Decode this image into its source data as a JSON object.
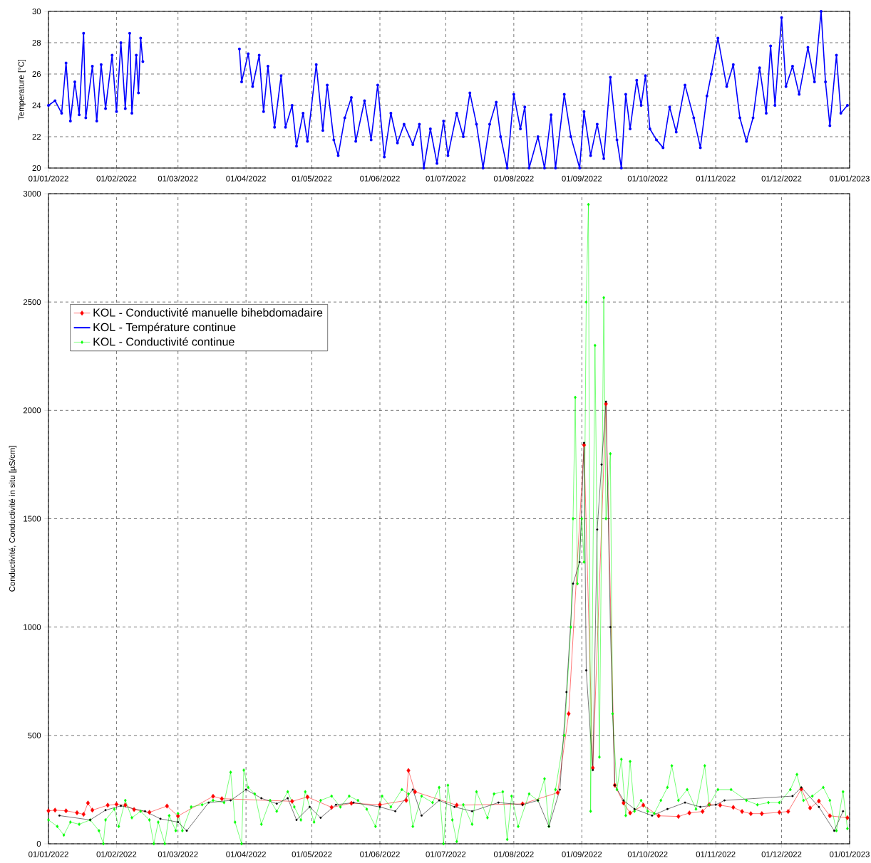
{
  "chart_data": [
    {
      "type": "line",
      "ylabel": "Temperature [°C]",
      "xlim": [
        "2022-01-01",
        "2023-01-01"
      ],
      "ylim": [
        20,
        30
      ],
      "yticks": [
        20,
        22,
        24,
        26,
        28,
        30
      ],
      "grid": true,
      "line_style": "solid",
      "xticks": [
        {
          "value": "2022-01-01",
          "label": "01/01/2022"
        },
        {
          "value": "2022-02-01",
          "label": "01/02/2022"
        },
        {
          "value": "2022-03-01",
          "label": "01/03/2022"
        },
        {
          "value": "2022-04-01",
          "label": "01/04/2022"
        },
        {
          "value": "2022-05-01",
          "label": "01/05/2022"
        },
        {
          "value": "2022-06-01",
          "label": "01/06/2022"
        },
        {
          "value": "2022-07-01",
          "label": "01/07/2022"
        },
        {
          "value": "2022-08-01",
          "label": "01/08/2022"
        },
        {
          "value": "2022-09-01",
          "label": "01/09/2022"
        },
        {
          "value": "2022-10-01",
          "label": "01/10/2022"
        },
        {
          "value": "2022-11-01",
          "label": "01/11/2022"
        },
        {
          "value": "2022-12-01",
          "label": "01/12/2022"
        },
        {
          "value": "2023-01-01",
          "label": "01/01/2023"
        }
      ],
      "series": [
        {
          "name": "KOL - Température continue",
          "color": "#0000ff",
          "marker": "circle",
          "x": [
            "2022-01-01",
            "2022-01-04",
            "2022-01-07",
            "2022-01-09",
            "2022-01-11",
            "2022-01-13",
            "2022-01-15",
            "2022-01-17",
            "2022-01-18",
            "2022-01-21",
            "2022-01-23",
            "2022-01-25",
            "2022-01-27",
            "2022-01-30",
            "2022-02-01",
            "2022-02-03",
            "2022-02-05",
            "2022-02-07",
            "2022-02-08",
            "2022-02-10",
            "2022-02-11",
            "2022-02-12",
            "2022-02-13",
            "2022-03-01",
            "2022-03-29",
            "2022-03-30",
            "2022-04-02",
            "2022-04-04",
            "2022-04-07",
            "2022-04-09",
            "2022-04-11",
            "2022-04-14",
            "2022-04-17",
            "2022-04-19",
            "2022-04-22",
            "2022-04-24",
            "2022-04-27",
            "2022-04-29",
            "2022-05-03",
            "2022-05-06",
            "2022-05-08",
            "2022-05-11",
            "2022-05-13",
            "2022-05-16",
            "2022-05-19",
            "2022-05-21",
            "2022-05-25",
            "2022-05-28",
            "2022-05-31",
            "2022-06-03",
            "2022-06-06",
            "2022-06-09",
            "2022-06-12",
            "2022-06-16",
            "2022-06-19",
            "2022-06-21",
            "2022-06-24",
            "2022-06-27",
            "2022-06-30",
            "2022-07-02",
            "2022-07-06",
            "2022-07-09",
            "2022-07-12",
            "2022-07-15",
            "2022-07-18",
            "2022-07-21",
            "2022-07-24",
            "2022-07-26",
            "2022-07-29",
            "2022-08-01",
            "2022-08-04",
            "2022-08-06",
            "2022-08-08",
            "2022-08-12",
            "2022-08-15",
            "2022-08-18",
            "2022-08-20",
            "2022-08-24",
            "2022-08-27",
            "2022-08-31",
            "2022-09-02",
            "2022-09-05",
            "2022-09-08",
            "2022-09-11",
            "2022-09-14",
            "2022-09-17",
            "2022-09-19",
            "2022-09-21",
            "2022-09-23",
            "2022-09-26",
            "2022-09-28",
            "2022-09-30",
            "2022-10-02",
            "2022-10-05",
            "2022-10-08",
            "2022-10-11",
            "2022-10-14",
            "2022-10-18",
            "2022-10-22",
            "2022-10-25",
            "2022-10-28",
            "2022-10-30",
            "2022-11-02",
            "2022-11-06",
            "2022-11-09",
            "2022-11-12",
            "2022-11-15",
            "2022-11-18",
            "2022-11-21",
            "2022-11-24",
            "2022-11-26",
            "2022-11-28",
            "2022-12-01",
            "2022-12-03",
            "2022-12-06",
            "2022-12-09",
            "2022-12-13",
            "2022-12-16",
            "2022-12-19",
            "2022-12-21",
            "2022-12-23",
            "2022-12-26",
            "2022-12-28",
            "2022-12-31"
          ],
          "values": [
            24.0,
            24.3,
            23.5,
            26.7,
            23.0,
            25.5,
            23.4,
            28.6,
            23.2,
            26.5,
            23.0,
            26.6,
            23.8,
            27.2,
            23.6,
            28.0,
            23.8,
            28.6,
            23.5,
            27.2,
            24.8,
            28.3,
            26.8,
            null,
            27.6,
            25.5,
            27.3,
            25.2,
            27.2,
            23.6,
            26.5,
            22.6,
            25.9,
            22.6,
            24.0,
            21.4,
            23.5,
            21.7,
            26.6,
            22.4,
            25.3,
            21.8,
            20.8,
            23.2,
            24.5,
            21.7,
            24.3,
            21.8,
            25.3,
            20.7,
            23.5,
            21.6,
            22.8,
            21.5,
            22.8,
            20.0,
            22.5,
            20.3,
            23.0,
            20.8,
            23.5,
            22.0,
            24.8,
            22.8,
            20.0,
            22.8,
            24.2,
            22.0,
            20.0,
            24.7,
            22.5,
            23.9,
            20.0,
            22.0,
            20.0,
            23.4,
            20.0,
            24.7,
            22.0,
            20.0,
            23.6,
            20.8,
            22.8,
            20.6,
            25.8,
            21.8,
            20.0,
            24.7,
            22.5,
            25.6,
            24.0,
            25.9,
            22.5,
            21.8,
            21.3,
            23.9,
            22.3,
            25.3,
            23.2,
            21.3,
            24.6,
            26.0,
            28.3,
            25.2,
            26.6,
            23.2,
            21.7,
            23.2,
            26.4,
            23.5,
            27.8,
            24.0,
            29.6,
            25.2,
            26.5,
            24.7,
            27.7,
            25.5,
            30.0,
            25.5,
            22.7,
            27.2,
            23.5,
            24.0
          ]
        }
      ]
    },
    {
      "type": "line",
      "ylabel": "Conductivité, Conductivité in situ [µS/cm]",
      "xlim": [
        "2022-01-01",
        "2023-01-01"
      ],
      "ylim": [
        0,
        3000
      ],
      "yticks": [
        0,
        500,
        1000,
        1500,
        2000,
        2500,
        3000
      ],
      "grid": true,
      "legend": "top left",
      "line_style": "solid",
      "xticks": [
        {
          "value": "2022-01-01",
          "label": "01/01/2022"
        },
        {
          "value": "2022-02-01",
          "label": "01/02/2022"
        },
        {
          "value": "2022-03-01",
          "label": "01/03/2022"
        },
        {
          "value": "2022-04-01",
          "label": "01/04/2022"
        },
        {
          "value": "2022-05-01",
          "label": "01/05/2022"
        },
        {
          "value": "2022-06-01",
          "label": "01/06/2022"
        },
        {
          "value": "2022-07-01",
          "label": "01/07/2022"
        },
        {
          "value": "2022-08-01",
          "label": "01/08/2022"
        },
        {
          "value": "2022-09-01",
          "label": "01/09/2022"
        },
        {
          "value": "2022-10-01",
          "label": "01/10/2022"
        },
        {
          "value": "2022-11-01",
          "label": "01/11/2022"
        },
        {
          "value": "2022-12-01",
          "label": "01/12/2022"
        },
        {
          "value": "2023-01-01",
          "label": "01/01/2023"
        }
      ],
      "series": [
        {
          "name": "KOL - Conductivité manuelle bihebdomadaire",
          "color": "#ff0000",
          "marker": "diamond",
          "x": [
            "2022-01-01",
            "2022-01-04",
            "2022-01-09",
            "2022-01-14",
            "2022-01-17",
            "2022-01-19",
            "2022-01-21",
            "2022-01-28",
            "2022-02-01",
            "2022-02-05",
            "2022-02-09",
            "2022-02-16",
            "2022-02-24",
            "2022-03-01",
            "2022-03-17",
            "2022-03-21",
            "2022-04-22",
            "2022-04-29",
            "2022-05-10",
            "2022-05-19",
            "2022-06-01",
            "2022-06-13",
            "2022-06-14",
            "2022-06-17",
            "2022-07-06",
            "2022-08-05",
            "2022-08-21",
            "2022-08-26",
            "2022-09-02",
            "2022-09-06",
            "2022-09-12",
            "2022-09-16",
            "2022-09-20",
            "2022-09-23",
            "2022-09-29",
            "2022-10-06",
            "2022-10-15",
            "2022-10-20",
            "2022-10-26",
            "2022-10-29",
            "2022-11-03",
            "2022-11-09",
            "2022-11-13",
            "2022-11-17",
            "2022-11-22",
            "2022-11-30",
            "2022-12-04",
            "2022-12-10",
            "2022-12-14",
            "2022-12-18",
            "2022-12-23",
            "2022-12-31"
          ],
          "values": [
            152,
            155,
            152,
            143,
            136,
            188,
            155,
            178,
            182,
            178,
            158,
            145,
            174,
            128,
            219,
            208,
            196,
            216,
            168,
            187,
            180,
            200,
            338,
            240,
            178,
            184,
            236,
            600,
            1840,
            350,
            2030,
            270,
            188,
            142,
            178,
            129,
            126,
            142,
            149,
            181,
            178,
            168,
            149,
            139,
            139,
            145,
            149,
            253,
            165,
            197,
            129,
            120
          ]
        },
        {
          "name": "KOL - Conductivité continue",
          "color": "#00ff00",
          "marker": "diamond",
          "x": [
            "2022-01-01",
            "2022-01-05",
            "2022-01-08",
            "2022-01-11",
            "2022-01-15",
            "2022-01-20",
            "2022-01-24",
            "2022-01-26",
            "2022-01-27",
            "2022-01-31",
            "2022-02-02",
            "2022-02-05",
            "2022-02-08",
            "2022-02-12",
            "2022-02-16",
            "2022-02-18",
            "2022-02-20",
            "2022-02-23",
            "2022-02-25",
            "2022-02-28",
            "2022-03-01",
            "2022-03-03",
            "2022-03-07",
            "2022-03-12",
            "2022-03-17",
            "2022-03-22",
            "2022-03-25",
            "2022-03-27",
            "2022-03-30",
            "2022-03-31",
            "2022-04-02",
            "2022-04-05",
            "2022-04-08",
            "2022-04-12",
            "2022-04-15",
            "2022-04-20",
            "2022-04-23",
            "2022-04-26",
            "2022-04-28",
            "2022-05-02",
            "2022-05-05",
            "2022-05-10",
            "2022-05-14",
            "2022-05-18",
            "2022-05-22",
            "2022-05-26",
            "2022-05-30",
            "2022-06-02",
            "2022-06-06",
            "2022-06-11",
            "2022-06-14",
            "2022-06-16",
            "2022-06-20",
            "2022-06-25",
            "2022-06-28",
            "2022-06-30",
            "2022-07-02",
            "2022-07-04",
            "2022-07-06",
            "2022-07-09",
            "2022-07-13",
            "2022-07-15",
            "2022-07-20",
            "2022-07-23",
            "2022-07-27",
            "2022-07-29",
            "2022-07-31",
            "2022-08-03",
            "2022-08-08",
            "2022-08-12",
            "2022-08-15",
            "2022-08-17",
            "2022-08-20",
            "2022-08-24",
            "2022-08-27",
            "2022-08-28",
            "2022-08-29",
            "2022-08-30",
            "2022-09-01",
            "2022-09-02",
            "2022-09-03",
            "2022-09-04",
            "2022-09-05",
            "2022-09-07",
            "2022-09-09",
            "2022-09-11",
            "2022-09-12",
            "2022-09-14",
            "2022-09-15",
            "2022-09-17",
            "2022-09-19",
            "2022-09-21",
            "2022-09-23",
            "2022-09-25",
            "2022-09-28",
            "2022-10-01",
            "2022-10-04",
            "2022-10-07",
            "2022-10-10",
            "2022-10-12",
            "2022-10-15",
            "2022-10-19",
            "2022-10-23",
            "2022-10-27",
            "2022-10-29",
            "2022-11-02",
            "2022-11-08",
            "2022-11-15",
            "2022-11-20",
            "2022-11-25",
            "2022-11-30",
            "2022-12-05",
            "2022-12-08",
            "2022-12-11",
            "2022-12-15",
            "2022-12-20",
            "2022-12-23",
            "2022-12-26",
            "2022-12-29",
            "2022-12-31"
          ],
          "values": [
            110,
            80,
            40,
            100,
            90,
            110,
            60,
            0,
            110,
            160,
            80,
            200,
            120,
            150,
            110,
            0,
            100,
            0,
            130,
            60,
            140,
            60,
            170,
            180,
            200,
            190,
            330,
            100,
            0,
            340,
            260,
            230,
            90,
            200,
            150,
            240,
            170,
            110,
            240,
            100,
            200,
            220,
            170,
            220,
            200,
            160,
            80,
            220,
            170,
            250,
            230,
            80,
            220,
            190,
            260,
            0,
            270,
            110,
            10,
            180,
            90,
            240,
            120,
            230,
            240,
            20,
            220,
            80,
            230,
            200,
            300,
            80,
            250,
            500,
            1000,
            1500,
            2060,
            1200,
            1500,
            1300,
            2500,
            2950,
            150,
            2300,
            400,
            2520,
            1500,
            1800,
            600,
            250,
            390,
            130,
            380,
            150,
            200,
            150,
            140,
            200,
            260,
            360,
            200,
            250,
            160,
            360,
            180,
            250,
            250,
            200,
            180,
            190,
            190,
            250,
            320,
            200,
            220,
            260,
            200,
            60,
            240,
            70
          ]
        },
        {
          "color": "#000000",
          "marker": "circle",
          "x": [
            "2022-01-06",
            "2022-01-20",
            "2022-01-27",
            "2022-02-03",
            "2022-02-14",
            "2022-02-21",
            "2022-03-01",
            "2022-03-05",
            "2022-03-15",
            "2022-03-25",
            "2022-04-01",
            "2022-04-08",
            "2022-04-15",
            "2022-04-20",
            "2022-04-24",
            "2022-04-30",
            "2022-05-05",
            "2022-05-12",
            "2022-05-20",
            "2022-06-01",
            "2022-06-08",
            "2022-06-16",
            "2022-06-20",
            "2022-06-28",
            "2022-07-05",
            "2022-07-13",
            "2022-07-25",
            "2022-08-05",
            "2022-08-12",
            "2022-08-17",
            "2022-08-22",
            "2022-08-25",
            "2022-08-28",
            "2022-08-31",
            "2022-09-02",
            "2022-09-03",
            "2022-09-06",
            "2022-09-08",
            "2022-09-10",
            "2022-09-12",
            "2022-09-14",
            "2022-09-16",
            "2022-09-20",
            "2022-09-25",
            "2022-10-03",
            "2022-10-10",
            "2022-10-18",
            "2022-10-25",
            "2022-11-01",
            "2022-11-05",
            "2022-12-06",
            "2022-12-10",
            "2022-12-18",
            "2022-12-25",
            "2022-12-29"
          ],
          "values": [
            130,
            110,
            155,
            175,
            150,
            115,
            100,
            60,
            190,
            200,
            250,
            210,
            185,
            210,
            110,
            170,
            120,
            180,
            190,
            170,
            150,
            250,
            130,
            200,
            170,
            150,
            190,
            180,
            200,
            80,
            250,
            700,
            1200,
            1300,
            1850,
            800,
            340,
            1450,
            1750,
            2040,
            1000,
            270,
            200,
            160,
            130,
            160,
            190,
            170,
            180,
            200,
            220,
            260,
            170,
            60,
            150
          ]
        }
      ]
    }
  ]
}
